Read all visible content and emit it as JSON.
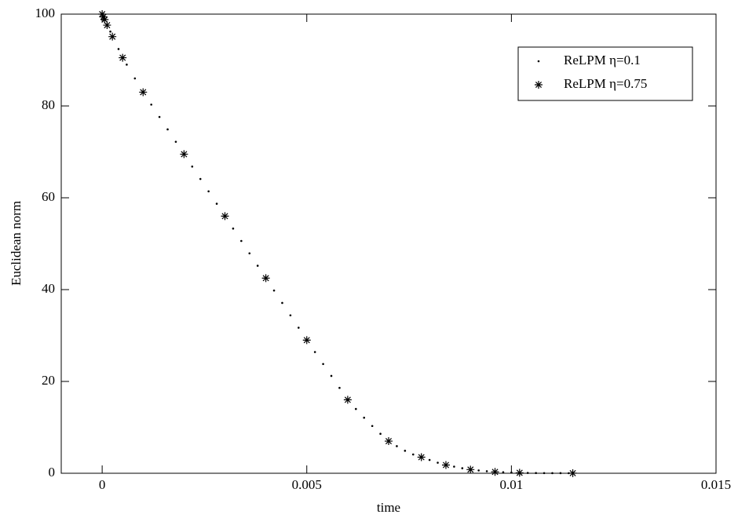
{
  "chart_data": {
    "type": "scatter",
    "xlabel": "time",
    "ylabel": "Euclidean norm",
    "xlim": [
      -0.001,
      0.015
    ],
    "xticks": [
      0,
      0.005,
      0.01,
      0.015
    ],
    "ylim": [
      0,
      100
    ],
    "yticks": [
      0,
      20,
      40,
      60,
      80,
      100
    ],
    "grid": false,
    "legend": "upper right",
    "series": [
      {
        "name": "ReLPM η=0.1",
        "color": "#000000",
        "marker": "dot",
        "x": [
          0,
          0.0002,
          0.0004,
          0.0006,
          0.0008,
          0.001,
          0.0012,
          0.0014,
          0.0016,
          0.0018,
          0.002,
          0.0022,
          0.0024,
          0.0026,
          0.0028,
          0.003,
          0.0032,
          0.0034,
          0.0036,
          0.0038,
          0.004,
          0.0042,
          0.0044,
          0.0046,
          0.0048,
          0.005,
          0.0052,
          0.0054,
          0.0056,
          0.0058,
          0.006,
          0.0062,
          0.0064,
          0.0066,
          0.0068,
          0.007,
          0.0072,
          0.0074,
          0.0076,
          0.0078,
          0.008,
          0.0082,
          0.0084,
          0.0086,
          0.0088,
          0.009,
          0.0092,
          0.0094,
          0.0096,
          0.0098,
          0.01,
          0.0102,
          0.0104,
          0.0106,
          0.0108,
          0.011,
          0.0112,
          0.0114
        ],
        "values": [
          100,
          96.2,
          92.4,
          89,
          86,
          83,
          80.3,
          77.6,
          74.9,
          72.2,
          69.5,
          66.8,
          64.1,
          61.4,
          58.7,
          56,
          53.3,
          50.6,
          47.9,
          45.2,
          42.5,
          39.8,
          37.1,
          34.4,
          31.7,
          29,
          26.4,
          23.8,
          21.2,
          18.6,
          16,
          14,
          12.1,
          10.3,
          8.6,
          7,
          5.9,
          4.9,
          4.1,
          3.5,
          2.9,
          2.3,
          1.8,
          1.45,
          1.1,
          0.8,
          0.62,
          0.45,
          0.3,
          0.22,
          0.16,
          0.1,
          0.07,
          0.05,
          0.04,
          0.03,
          0.025,
          0.02
        ]
      },
      {
        "name": "ReLPM η=0.75",
        "color": "#000000",
        "marker": "star",
        "x": [
          0,
          3e-05,
          6e-05,
          0.00012,
          0.00025,
          0.0005,
          0.001,
          0.002,
          0.003,
          0.004,
          0.005,
          0.006,
          0.007,
          0.0078,
          0.0084,
          0.009,
          0.0096,
          0.0102,
          0.0115
        ],
        "values": [
          100,
          99.4,
          98.8,
          97.6,
          95.1,
          90.5,
          83,
          69.5,
          56,
          42.5,
          29,
          16,
          7,
          3.5,
          1.8,
          0.8,
          0.3,
          0.1,
          0.02
        ]
      }
    ]
  }
}
